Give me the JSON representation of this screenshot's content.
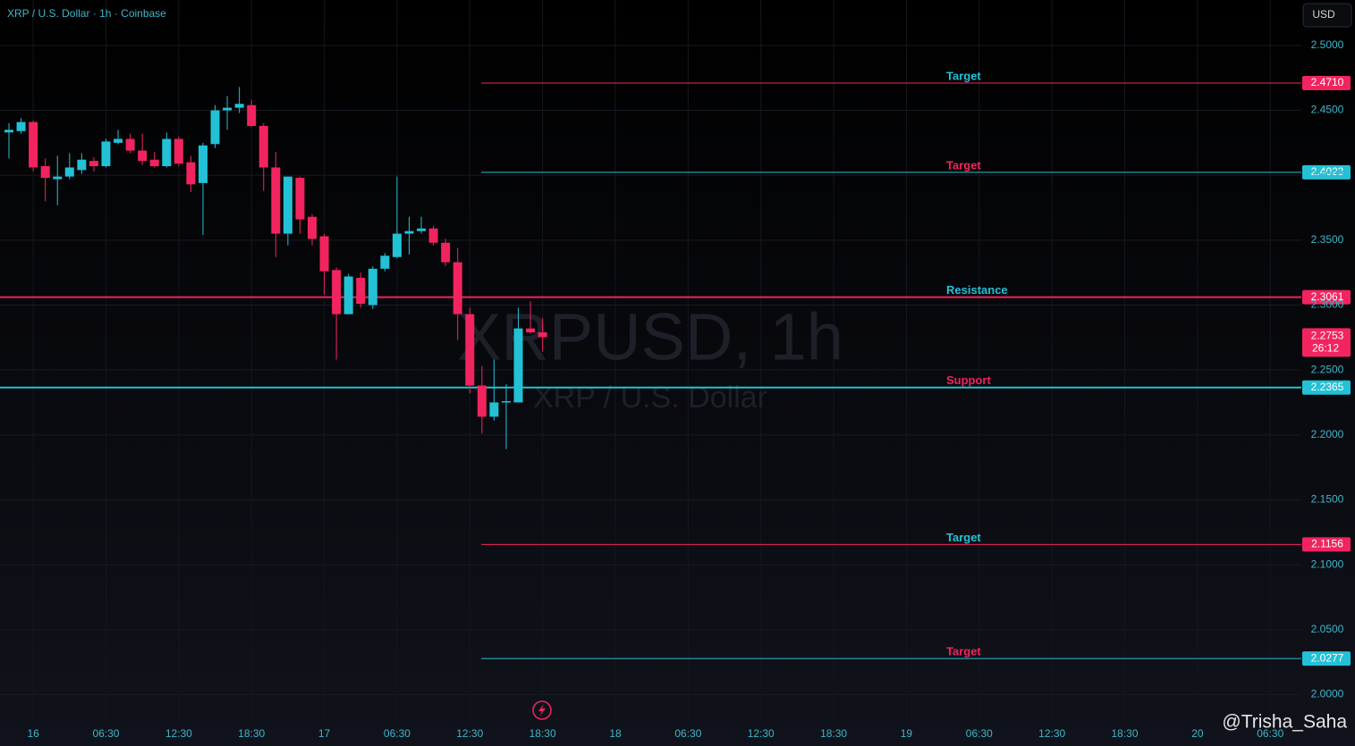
{
  "chart_data": {
    "type": "candlestick",
    "title": "XRP / U.S. Dollar · 1h · Coinbase",
    "watermark": "XRPUSD, 1h",
    "watermark_subtitle": "XRP / U.S. Dollar",
    "currency_button": "USD",
    "credit": "@Trisha_Saha",
    "up_color": "#22c1d6",
    "down_color": "#f2245f",
    "grid": true,
    "ylim": [
      1.981,
      2.535
    ],
    "yticks": [
      {
        "value": 2.5,
        "label": "2.5000"
      },
      {
        "value": 2.45,
        "label": "2.4500"
      },
      {
        "value": 2.4,
        "label": "2.4000"
      },
      {
        "value": 2.35,
        "label": "2.3500"
      },
      {
        "value": 2.3,
        "label": "2.3000"
      },
      {
        "value": 2.25,
        "label": "2.2500"
      },
      {
        "value": 2.2,
        "label": "2.2000"
      },
      {
        "value": 2.15,
        "label": "2.1500"
      },
      {
        "value": 2.1,
        "label": "2.1000"
      },
      {
        "value": 2.05,
        "label": "2.0500"
      },
      {
        "value": 2,
        "label": "2.0000"
      }
    ],
    "categories": [
      null,
      null,
      "16",
      null,
      null,
      null,
      null,
      null,
      "06:30",
      null,
      null,
      null,
      null,
      null,
      "12:30",
      null,
      null,
      null,
      null,
      null,
      "18:30",
      null,
      null,
      null,
      null,
      null,
      "17",
      null,
      null,
      null,
      null,
      null,
      "06:30",
      null,
      null,
      null,
      null,
      null,
      "12:30",
      null,
      null,
      null,
      null,
      null,
      "18:30",
      null,
      null,
      null,
      null,
      null,
      "18",
      null,
      null,
      null,
      null,
      null,
      "06:30",
      null,
      null,
      null,
      null,
      null,
      "12:30",
      null,
      null,
      null,
      null,
      null,
      "18:30",
      null,
      null,
      null,
      null,
      null,
      "19",
      null,
      null,
      null,
      null,
      null,
      "06:30",
      null,
      null,
      null,
      null,
      null,
      "12:30",
      null,
      null,
      null,
      null,
      null,
      "18:30",
      null,
      null,
      null,
      null,
      null,
      "20",
      null,
      null,
      null,
      null,
      null,
      "06:30"
    ],
    "candles": [
      [
        2.433,
        2.44,
        2.413,
        2.435
      ],
      [
        2.434,
        2.444,
        2.432,
        2.441
      ],
      [
        2.441,
        2.442,
        2.403,
        2.406
      ],
      [
        2.407,
        2.413,
        2.38,
        2.398
      ],
      [
        2.397,
        2.415,
        2.377,
        2.399
      ],
      [
        2.399,
        2.417,
        2.397,
        2.406
      ],
      [
        2.404,
        2.417,
        2.401,
        2.412
      ],
      [
        2.411,
        2.414,
        2.403,
        2.407
      ],
      [
        2.407,
        2.428,
        2.406,
        2.426
      ],
      [
        2.425,
        2.435,
        2.424,
        2.428
      ],
      [
        2.428,
        2.432,
        2.417,
        2.419
      ],
      [
        2.419,
        2.432,
        2.408,
        2.411
      ],
      [
        2.412,
        2.418,
        2.406,
        2.407
      ],
      [
        2.407,
        2.433,
        2.406,
        2.428
      ],
      [
        2.428,
        2.43,
        2.407,
        2.409
      ],
      [
        2.41,
        2.415,
        2.387,
        2.393
      ],
      [
        2.394,
        2.425,
        2.354,
        2.423
      ],
      [
        2.424,
        2.454,
        2.421,
        2.45
      ],
      [
        2.45,
        2.461,
        2.435,
        2.452
      ],
      [
        2.452,
        2.468,
        2.448,
        2.455
      ],
      [
        2.454,
        2.458,
        2.437,
        2.438
      ],
      [
        2.438,
        2.44,
        2.388,
        2.406
      ],
      [
        2.406,
        2.418,
        2.337,
        2.355
      ],
      [
        2.355,
        2.399,
        2.346,
        2.399
      ],
      [
        2.398,
        2.399,
        2.355,
        2.366
      ],
      [
        2.368,
        2.37,
        2.346,
        2.351
      ],
      [
        2.353,
        2.355,
        2.308,
        2.326
      ],
      [
        2.327,
        2.329,
        2.258,
        2.293
      ],
      [
        2.293,
        2.324,
        2.293,
        2.322
      ],
      [
        2.321,
        2.325,
        2.298,
        2.301
      ],
      [
        2.3,
        2.33,
        2.297,
        2.328
      ],
      [
        2.328,
        2.34,
        2.326,
        2.338
      ],
      [
        2.337,
        2.399,
        2.336,
        2.355
      ],
      [
        2.355,
        2.368,
        2.339,
        2.357
      ],
      [
        2.357,
        2.368,
        2.355,
        2.359
      ],
      [
        2.359,
        2.361,
        2.346,
        2.348
      ],
      [
        2.348,
        2.351,
        2.33,
        2.333
      ],
      [
        2.333,
        2.344,
        2.273,
        2.293
      ],
      [
        2.293,
        2.298,
        2.232,
        2.238
      ],
      [
        2.238,
        2.253,
        2.201,
        2.214
      ],
      [
        2.214,
        2.258,
        2.211,
        2.225
      ],
      [
        2.225,
        2.239,
        2.189,
        2.226
      ],
      [
        2.225,
        2.298,
        2.225,
        2.282
      ],
      [
        2.282,
        2.303,
        2.278,
        2.279
      ],
      [
        2.279,
        2.29,
        2.264,
        2.2753
      ],
      null,
      null,
      null,
      null,
      null,
      null,
      null,
      null,
      null,
      null,
      null,
      null,
      null,
      null,
      null,
      null,
      null,
      null,
      null,
      null,
      null,
      null,
      null,
      null,
      null,
      null,
      null,
      null,
      null,
      null,
      null,
      null,
      null,
      null,
      null,
      null,
      null,
      null,
      null,
      null,
      null,
      null,
      null,
      null,
      null,
      null,
      null,
      null,
      null,
      null,
      null,
      null,
      null,
      null,
      null,
      null,
      null,
      null,
      null,
      null
    ],
    "last_price": {
      "value": 2.2753,
      "value_label": "2.2753",
      "countdown": "26:12",
      "color": "#f2245f"
    },
    "levels": [
      {
        "label": "Target",
        "value": 2.471,
        "value_label": "2.4710",
        "line_color": "#f2245f",
        "label_color": "#22c1d6",
        "full_width": false
      },
      {
        "label": "Target",
        "value": 2.4023,
        "value_label": "2.4023",
        "line_color": "#22c1d6",
        "label_color": "#f2245f",
        "full_width": false
      },
      {
        "label": "Resistance",
        "value": 2.3061,
        "value_label": "2.3061",
        "line_color": "#f2245f",
        "label_color": "#22c1d6",
        "full_width": true
      },
      {
        "label": "Support",
        "value": 2.2365,
        "value_label": "2.2365",
        "line_color": "#22c1d6",
        "label_color": "#f2245f",
        "full_width": true
      },
      {
        "label": "Target",
        "value": 2.1156,
        "value_label": "2.1156",
        "line_color": "#f2245f",
        "label_color": "#22c1d6",
        "full_width": false
      },
      {
        "label": "Target",
        "value": 2.0277,
        "value_label": "2.0277",
        "line_color": "#22c1d6",
        "label_color": "#f2245f",
        "full_width": false
      }
    ]
  }
}
